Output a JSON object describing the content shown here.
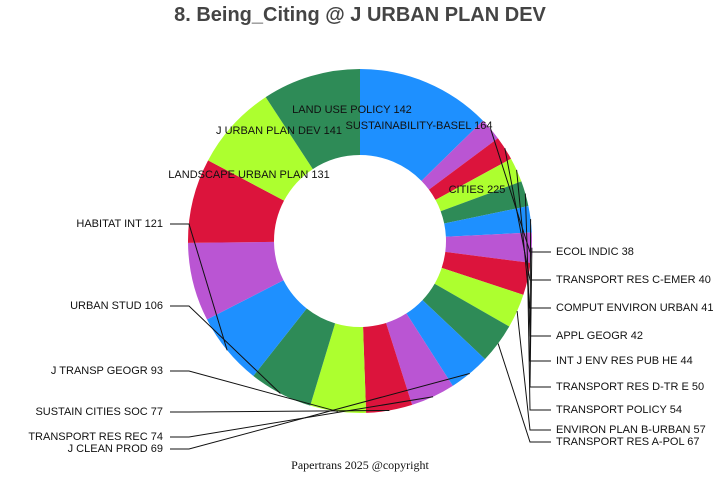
{
  "chart_data": {
    "type": "pie",
    "title": "8. Being_Citing @ J URBAN PLAN DEV",
    "donut": true,
    "start_angle": "90 degrees clockwise from top",
    "categories": [
      "CITIES",
      "ECOL INDIC",
      "TRANSPORT RES C-EMER",
      "COMPUT ENVIRON URBAN",
      "APPL GEOGR",
      "INT J ENV RES PUB HE",
      "TRANSPORT RES D-TR E",
      "TRANSPORT POLICY",
      "ENVIRON PLAN B-URBAN",
      "TRANSPORT RES A-POL",
      "J CLEAN PROD",
      "TRANSPORT RES REC",
      "SUSTAIN CITIES SOC",
      "J TRANSP GEOGR",
      "URBAN STUD",
      "HABITAT INT",
      "LANDSCAPE URBAN PLAN",
      "J URBAN PLAN DEV",
      "LAND USE POLICY",
      "SUSTAINABILITY-BASEL"
    ],
    "values": [
      225,
      38,
      40,
      41,
      42,
      44,
      50,
      54,
      57,
      67,
      69,
      74,
      77,
      93,
      106,
      121,
      131,
      141,
      142,
      164
    ],
    "labels": [
      "CITIES 225",
      "ECOL INDIC 38",
      "TRANSPORT RES C-EMER 40",
      "COMPUT ENVIRON URBAN 41",
      "APPL GEOGR 42",
      "INT J ENV RES PUB HE 44",
      "TRANSPORT RES D-TR E 50",
      "TRANSPORT POLICY 54",
      "ENVIRON PLAN B-URBAN 57",
      "TRANSPORT RES A-POL 67",
      "J CLEAN PROD 69",
      "TRANSPORT RES REC 74",
      "SUSTAIN CITIES SOC 77",
      "J TRANSP GEOGR 93",
      "URBAN STUD 106",
      "HABITAT INT 121",
      "LANDSCAPE URBAN PLAN 131",
      "J URBAN PLAN DEV 141",
      "LAND USE POLICY 142",
      "SUSTAINABILITY-BASEL 164"
    ],
    "colors": [
      "#1E90FF",
      "#BA55D3",
      "#DC143C",
      "#ADFF2F",
      "#2E8B57"
    ],
    "legend": "none"
  },
  "footer": "Papertrans 2025 @copyright"
}
